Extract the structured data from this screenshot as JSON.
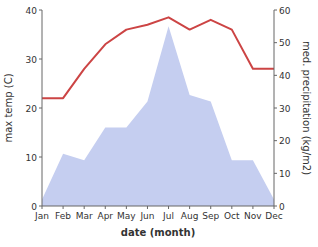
{
  "chart_data": {
    "type": "line",
    "x_label": "date (month)",
    "y_label": "max temp (C)",
    "y2_label": "med. precipitation (kg/m2)",
    "categories": [
      "Jan",
      "Feb",
      "Mar",
      "Apr",
      "May",
      "Jun",
      "Jul",
      "Aug",
      "Sep",
      "Oct",
      "Nov",
      "Dec"
    ],
    "series": [
      {
        "type": "area",
        "axis": "y2",
        "color": "#c5cef0",
        "values": [
          2,
          16,
          14,
          24,
          24,
          32,
          55,
          34,
          32,
          14,
          14,
          2
        ]
      },
      {
        "type": "line",
        "color": "#cc4444",
        "values": [
          22,
          22,
          28,
          33,
          36,
          37,
          38.5,
          36,
          38,
          36,
          28,
          28
        ]
      }
    ],
    "ylim": [
      0,
      40
    ],
    "yticks": [
      0,
      10,
      20,
      30,
      40
    ],
    "y2lim": [
      0,
      60
    ],
    "y2ticks": [
      0,
      10,
      20,
      30,
      40,
      50,
      60
    ],
    "grid": false
  }
}
